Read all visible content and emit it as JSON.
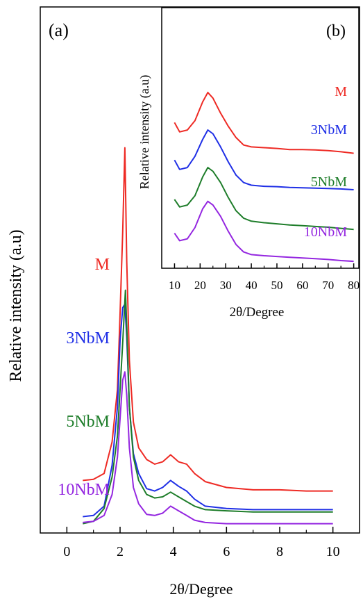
{
  "chart_data": [
    {
      "type": "line",
      "panel_label": "(a)",
      "xlabel": "2θ/Degree",
      "ylabel": "Relative intensity (a.u)",
      "xlim": [
        -1,
        11
      ],
      "xticks": [
        "0",
        "2",
        "4",
        "6",
        "8",
        "10"
      ],
      "xtick_values": [
        0,
        2,
        4,
        6,
        8,
        10
      ],
      "y_axis_ticks": "none",
      "series": [
        {
          "name": "M",
          "color": "#ee2a24",
          "x": [
            0.6,
            1.0,
            1.4,
            1.7,
            1.9,
            2.0,
            2.1,
            2.18,
            2.25,
            2.35,
            2.5,
            2.7,
            3.0,
            3.3,
            3.6,
            3.9,
            4.2,
            4.5,
            4.8,
            5.2,
            6.0,
            7.0,
            8.0,
            9.0,
            10.0
          ],
          "y": [
            0.42,
            0.43,
            0.48,
            0.75,
            1.2,
            1.85,
            2.55,
            3.27,
            2.3,
            1.45,
            0.92,
            0.7,
            0.6,
            0.56,
            0.58,
            0.64,
            0.58,
            0.56,
            0.48,
            0.41,
            0.36,
            0.34,
            0.34,
            0.33,
            0.33
          ]
        },
        {
          "name": "3NbM",
          "color": "#1f2fe6",
          "x": [
            0.6,
            1.0,
            1.4,
            1.7,
            1.9,
            2.0,
            2.1,
            2.18,
            2.25,
            2.35,
            2.5,
            2.7,
            3.0,
            3.3,
            3.6,
            3.9,
            4.2,
            4.5,
            4.8,
            5.2,
            6.0,
            7.0,
            8.0,
            9.0,
            10.0
          ],
          "y": [
            0.11,
            0.12,
            0.2,
            0.55,
            1.05,
            1.62,
            1.9,
            1.93,
            1.65,
            1.05,
            0.65,
            0.48,
            0.35,
            0.33,
            0.36,
            0.42,
            0.37,
            0.33,
            0.26,
            0.2,
            0.18,
            0.17,
            0.17,
            0.17,
            0.17
          ]
        },
        {
          "name": "5NbM",
          "color": "#1e7d2a",
          "x": [
            0.6,
            1.0,
            1.4,
            1.7,
            1.9,
            2.0,
            2.1,
            2.2,
            2.25,
            2.35,
            2.5,
            2.7,
            3.0,
            3.3,
            3.6,
            3.9,
            4.2,
            4.5,
            4.8,
            5.2,
            6.0,
            7.0,
            8.0,
            9.0,
            10.0
          ],
          "y": [
            0.05,
            0.07,
            0.18,
            0.45,
            0.8,
            1.2,
            1.6,
            2.05,
            1.75,
            1.05,
            0.62,
            0.42,
            0.3,
            0.27,
            0.28,
            0.32,
            0.28,
            0.24,
            0.2,
            0.17,
            0.16,
            0.15,
            0.15,
            0.15,
            0.15
          ]
        },
        {
          "name": "10NbM",
          "color": "#9426e0",
          "x": [
            0.6,
            1.0,
            1.4,
            1.7,
            1.9,
            2.0,
            2.1,
            2.18,
            2.25,
            2.35,
            2.5,
            2.7,
            3.0,
            3.3,
            3.6,
            3.9,
            4.2,
            4.5,
            4.8,
            5.2,
            6.0,
            7.0,
            8.0,
            9.0,
            10.0
          ],
          "y": [
            0.06,
            0.07,
            0.12,
            0.3,
            0.62,
            0.95,
            1.28,
            1.35,
            1.15,
            0.7,
            0.36,
            0.22,
            0.13,
            0.12,
            0.14,
            0.2,
            0.16,
            0.12,
            0.08,
            0.06,
            0.05,
            0.05,
            0.05,
            0.05,
            0.05
          ]
        }
      ]
    },
    {
      "type": "line",
      "panel_label": "(b)",
      "xlabel": "2θ/Degree",
      "ylabel": "Relative intensity (a.u)",
      "xlim": [
        5,
        82
      ],
      "xticks": [
        "10",
        "20",
        "30",
        "40",
        "50",
        "60",
        "70",
        "80"
      ],
      "xtick_values": [
        10,
        20,
        30,
        40,
        50,
        60,
        70,
        80
      ],
      "y_axis_ticks": "none",
      "series": [
        {
          "name": "M",
          "color": "#ee2a24",
          "x": [
            10,
            12,
            15,
            18,
            21,
            23,
            25,
            28,
            31,
            34,
            37,
            40,
            45,
            50,
            55,
            60,
            65,
            70,
            75,
            80
          ],
          "y": [
            3.55,
            3.3,
            3.35,
            3.6,
            4.1,
            4.35,
            4.2,
            3.8,
            3.45,
            3.15,
            2.95,
            2.9,
            2.88,
            2.86,
            2.83,
            2.83,
            2.82,
            2.8,
            2.77,
            2.73
          ]
        },
        {
          "name": "3NbM",
          "color": "#1f2fe6",
          "x": [
            10,
            12,
            15,
            18,
            21,
            23,
            25,
            28,
            31,
            34,
            37,
            40,
            45,
            50,
            55,
            60,
            65,
            70,
            75,
            80
          ],
          "y": [
            2.55,
            2.3,
            2.35,
            2.65,
            3.1,
            3.35,
            3.25,
            2.9,
            2.5,
            2.15,
            1.95,
            1.88,
            1.85,
            1.84,
            1.82,
            1.81,
            1.8,
            1.79,
            1.78,
            1.76
          ]
        },
        {
          "name": "5NbM",
          "color": "#1e7d2a",
          "x": [
            10,
            12,
            15,
            18,
            21,
            23,
            25,
            28,
            31,
            34,
            37,
            40,
            45,
            50,
            55,
            60,
            65,
            70,
            75,
            80
          ],
          "y": [
            1.5,
            1.3,
            1.35,
            1.6,
            2.1,
            2.35,
            2.25,
            1.95,
            1.55,
            1.2,
            1.0,
            0.92,
            0.88,
            0.85,
            0.82,
            0.8,
            0.78,
            0.76,
            0.73,
            0.7
          ]
        },
        {
          "name": "10NbM",
          "color": "#9426e0",
          "x": [
            10,
            12,
            15,
            18,
            21,
            23,
            25,
            28,
            31,
            34,
            37,
            40,
            45,
            50,
            55,
            60,
            65,
            70,
            75,
            80
          ],
          "y": [
            0.6,
            0.4,
            0.45,
            0.75,
            1.25,
            1.45,
            1.35,
            1.05,
            0.65,
            0.3,
            0.1,
            0.03,
            0.0,
            -0.02,
            -0.04,
            -0.06,
            -0.08,
            -0.1,
            -0.13,
            -0.15
          ]
        }
      ]
    }
  ]
}
